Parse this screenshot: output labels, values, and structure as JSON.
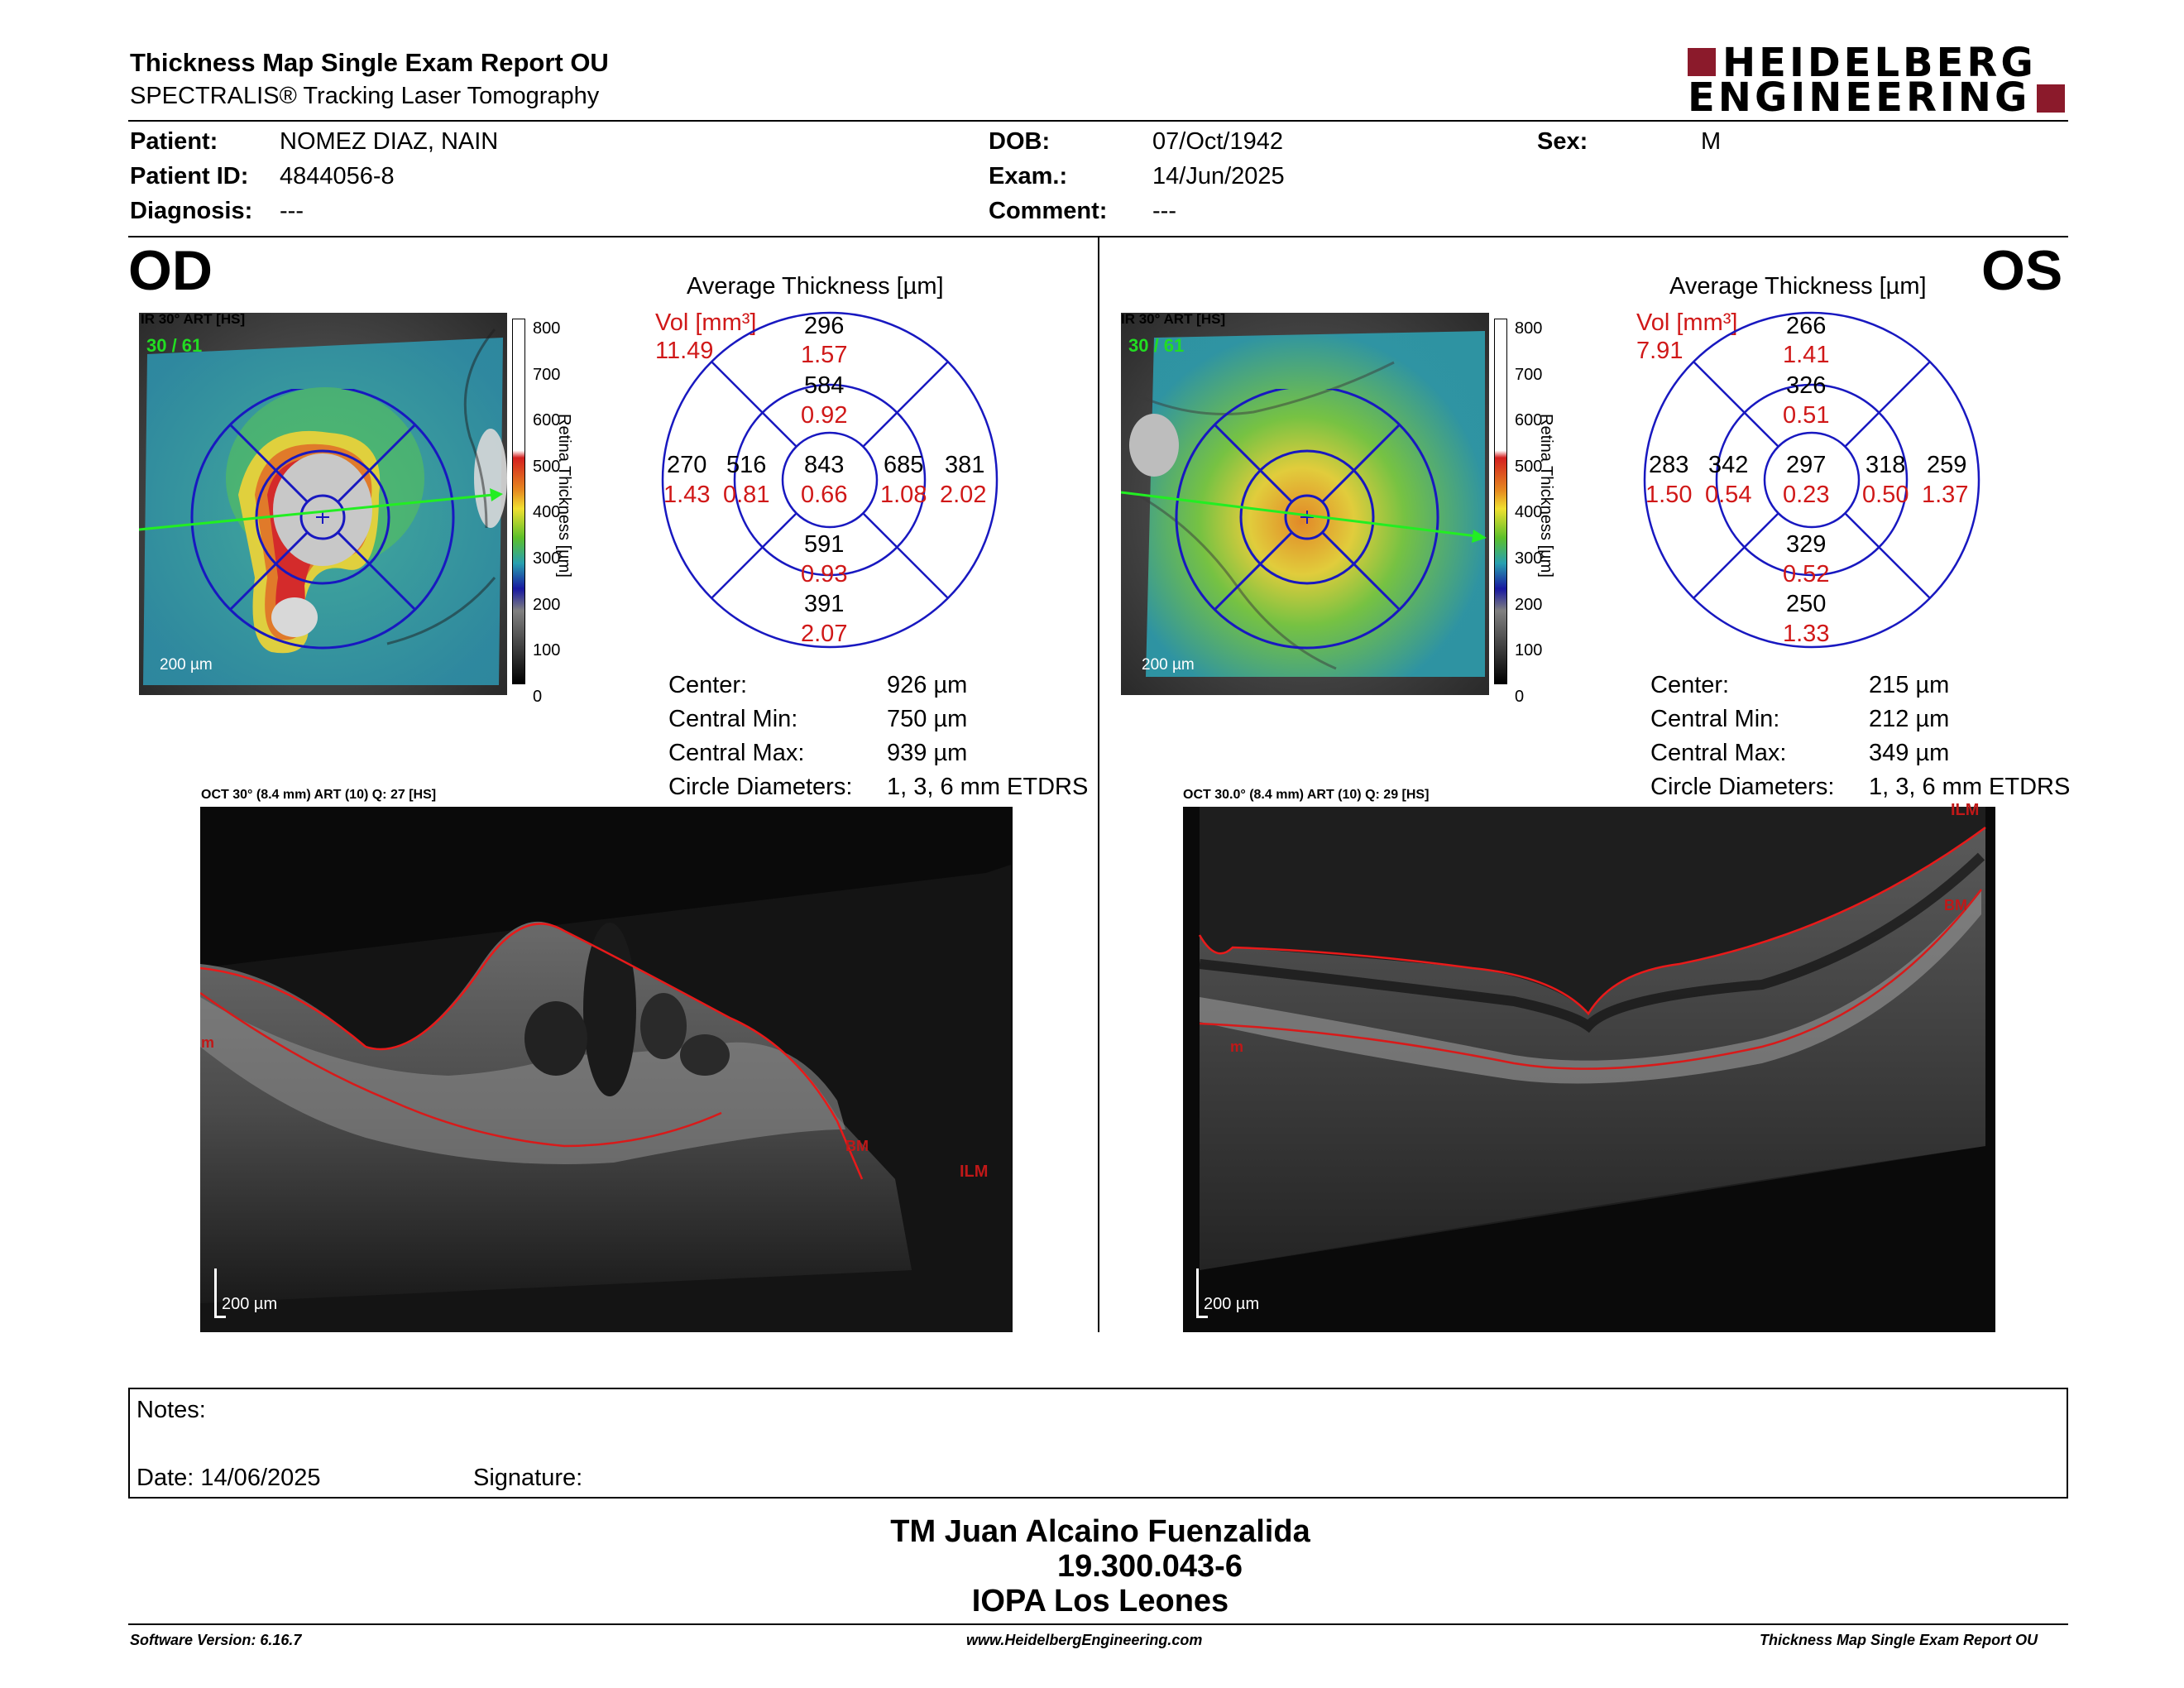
{
  "header": {
    "title": "Thickness Map Single Exam Report OU",
    "subtitle": "SPECTRALIS® Tracking Laser Tomography",
    "logo_top": "HEIDELBERG",
    "logo_bottom": "ENGINEERING",
    "brand_color": "#8b1a2b"
  },
  "patient": {
    "patient_label": "Patient:",
    "patient_value": "NOMEZ DIAZ, NAIN",
    "id_label": "Patient ID:",
    "id_value": "4844056-8",
    "diagnosis_label": "Diagnosis:",
    "diagnosis_value": "---",
    "dob_label": "DOB:",
    "dob_value": "07/Oct/1942",
    "exam_label": "Exam.:",
    "exam_value": "14/Jun/2025",
    "comment_label": "Comment:",
    "comment_value": "---",
    "sex_label": "Sex:",
    "sex_value": "M"
  },
  "od": {
    "eye": "OD",
    "fundus_label": "IR 30° ART [HS]",
    "frames": "30 / 61",
    "scale_label": "200 µm",
    "colorbar_ticks": [
      "800",
      "700",
      "600",
      "500",
      "400",
      "300",
      "200",
      "100",
      "0"
    ],
    "colorbar_title": "Retina  Thickness [µm]",
    "avg_title": "Average Thickness [µm]",
    "vol_label": "Vol [mm³]",
    "vol_total": "11.49",
    "sectors": {
      "outer_sup": {
        "t": "296",
        "v": "1.57"
      },
      "inner_sup": {
        "t": "584",
        "v": "0.92"
      },
      "center": {
        "t": "843",
        "v": "0.66"
      },
      "outer_left": {
        "t": "270",
        "v": "1.43"
      },
      "inner_left": {
        "t": "516",
        "v": "0.81"
      },
      "inner_right": {
        "t": "685",
        "v": "1.08"
      },
      "outer_right": {
        "t": "381",
        "v": "2.02"
      },
      "inner_inf": {
        "t": "591",
        "v": "0.93"
      },
      "outer_inf": {
        "t": "391",
        "v": "2.07"
      }
    },
    "stats": [
      {
        "label": "Center:",
        "value": "926 µm"
      },
      {
        "label": "Central Min:",
        "value": "750 µm"
      },
      {
        "label": "Central Max:",
        "value": "939 µm"
      },
      {
        "label": "Circle Diameters:",
        "value": "1, 3, 6 mm ETDRS"
      }
    ],
    "oct_label": "OCT 30° (8.4 mm) ART (10) Q: 27 [HS]",
    "oct_scale": "200 µm",
    "layer_ilm": "ILM",
    "layer_bm": "BM",
    "layer_m": "m"
  },
  "os": {
    "eye": "OS",
    "fundus_label": "IR 30° ART [HS]",
    "frames": "30 / 61",
    "scale_label": "200 µm",
    "colorbar_ticks": [
      "800",
      "700",
      "600",
      "500",
      "400",
      "300",
      "200",
      "100",
      "0"
    ],
    "colorbar_title": "Retina  Thickness [µm]",
    "avg_title": "Average Thickness [µm]",
    "vol_label": "Vol [mm³]",
    "vol_total": "7.91",
    "sectors": {
      "outer_sup": {
        "t": "266",
        "v": "1.41"
      },
      "inner_sup": {
        "t": "326",
        "v": "0.51"
      },
      "center": {
        "t": "297",
        "v": "0.23"
      },
      "outer_left": {
        "t": "283",
        "v": "1.50"
      },
      "inner_left": {
        "t": "342",
        "v": "0.54"
      },
      "inner_right": {
        "t": "318",
        "v": "0.50"
      },
      "outer_right": {
        "t": "259",
        "v": "1.37"
      },
      "inner_inf": {
        "t": "329",
        "v": "0.52"
      },
      "outer_inf": {
        "t": "250",
        "v": "1.33"
      }
    },
    "stats": [
      {
        "label": "Center:",
        "value": "215 µm"
      },
      {
        "label": "Central Min:",
        "value": "212 µm"
      },
      {
        "label": "Central Max:",
        "value": "349 µm"
      },
      {
        "label": "Circle Diameters:",
        "value": "1, 3, 6 mm ETDRS"
      }
    ],
    "oct_label": "OCT 30.0° (8.4 mm) ART (10) Q: 29 [HS]",
    "oct_scale": "200 µm",
    "layer_ilm": "ILM",
    "layer_bm": "BM",
    "layer_m": "m"
  },
  "notes": {
    "notes_label": "Notes:",
    "date_label": "Date: 14/06/2025",
    "signature_label": "Signature:"
  },
  "signature_block": {
    "name": "TM Juan Alcaino Fuenzalida",
    "rut": "19.300.043-6",
    "institution": "IOPA Los Leones"
  },
  "footer": {
    "software": "Software Version: 6.16.7",
    "website": "www.HeidelbergEngineering.com",
    "report_name": "Thickness Map Single Exam Report OU"
  }
}
